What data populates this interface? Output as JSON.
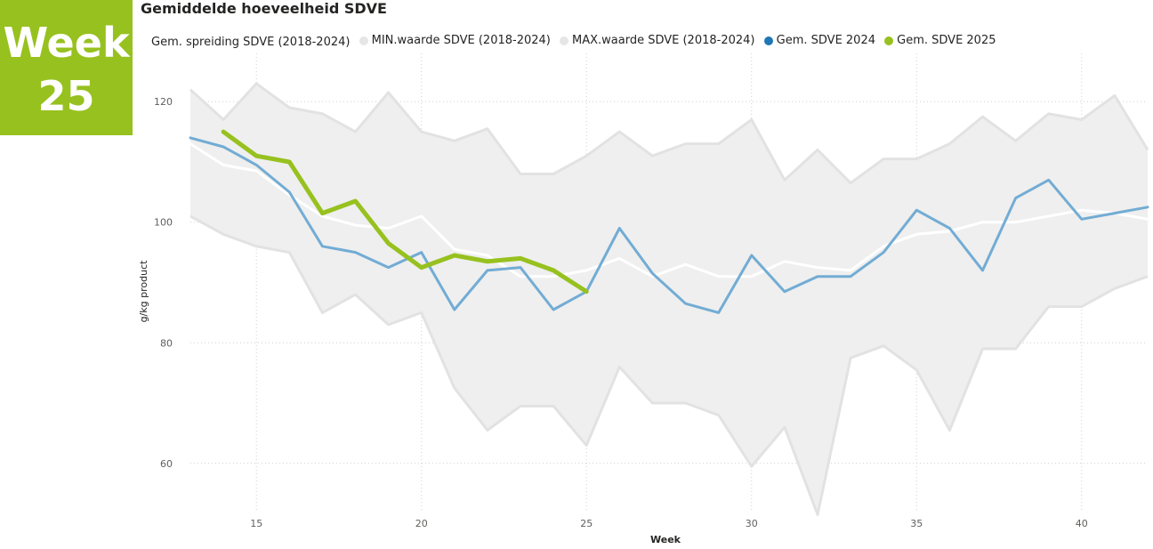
{
  "badge": {
    "line1": "Week",
    "line2": "25",
    "color": "#97c11f"
  },
  "chart_data": {
    "type": "line",
    "title": "Gemiddelde hoeveelheid SDVE",
    "xlabel": "Week",
    "ylabel": "g/kg product",
    "xlim": [
      13,
      42
    ],
    "ylim": [
      52,
      128
    ],
    "xticks": [
      15,
      20,
      25,
      30,
      35,
      40
    ],
    "yticks": [
      60,
      80,
      100,
      120
    ],
    "grid": true,
    "legend_position": "top",
    "legend": [
      {
        "name": "Gem. spreiding SDVE (2018-2024)",
        "color": "#ffffff"
      },
      {
        "name": "MIN.waarde SDVE (2018-2024)",
        "color": "#e6e6e6"
      },
      {
        "name": "MAX.waarde SDVE (2018-2024)",
        "color": "#e6e6e6"
      },
      {
        "name": "Gem. SDVE 2024",
        "color": "#1f77b4"
      },
      {
        "name": "Gem. SDVE 2025",
        "color": "#97c11f"
      }
    ],
    "x": [
      13,
      14,
      15,
      16,
      17,
      18,
      19,
      20,
      21,
      22,
      23,
      24,
      25,
      26,
      27,
      28,
      29,
      30,
      31,
      32,
      33,
      34,
      35,
      36,
      37,
      38,
      39,
      40,
      41,
      42
    ],
    "band": {
      "min": [
        101,
        98,
        96,
        95,
        85,
        88,
        83,
        85,
        72.5,
        65.5,
        69.5,
        69.5,
        63,
        76,
        70,
        70,
        68,
        59.5,
        66,
        51.5,
        77.5,
        79.5,
        75.5,
        65.5,
        79,
        79,
        86,
        86,
        89,
        91
      ],
      "max": [
        122,
        117,
        123,
        119,
        118,
        115,
        121.5,
        115,
        113.5,
        115.5,
        108,
        108,
        111,
        115,
        111,
        113,
        113,
        117,
        107,
        112,
        106.5,
        110.5,
        110.5,
        113,
        117.5,
        113.5,
        118,
        117,
        121,
        112
      ]
    },
    "series": [
      {
        "name": "Gem. spreiding SDVE (2018-2024)",
        "color": "#ffffff",
        "values": [
          113,
          109.5,
          108.5,
          104.5,
          101,
          99.5,
          99,
          101,
          95.5,
          94.5,
          91,
          91,
          92,
          94,
          91,
          93,
          91,
          91,
          93.5,
          92.5,
          92,
          96,
          98,
          98.5,
          100,
          100,
          101,
          102,
          101.5,
          100.5
        ]
      },
      {
        "name": "Gem. SDVE 2024",
        "color": "#72acd4",
        "values": [
          114,
          112.5,
          109.5,
          105,
          96,
          95,
          92.5,
          95,
          85.5,
          92,
          92.5,
          85.5,
          88.5,
          99,
          91.5,
          86.5,
          85,
          94.5,
          88.5,
          91,
          91,
          95,
          102,
          99,
          92,
          104,
          107,
          100.5,
          101.5,
          102.5
        ]
      },
      {
        "name": "Gem. SDVE 2025",
        "color": "#97c11f",
        "x": [
          14,
          15,
          16,
          17,
          18,
          19,
          20,
          21,
          22,
          23,
          24,
          25
        ],
        "values": [
          115,
          111,
          110,
          101.5,
          103.5,
          96.5,
          92.5,
          94.5,
          93.5,
          94,
          92,
          88.5
        ]
      }
    ]
  }
}
